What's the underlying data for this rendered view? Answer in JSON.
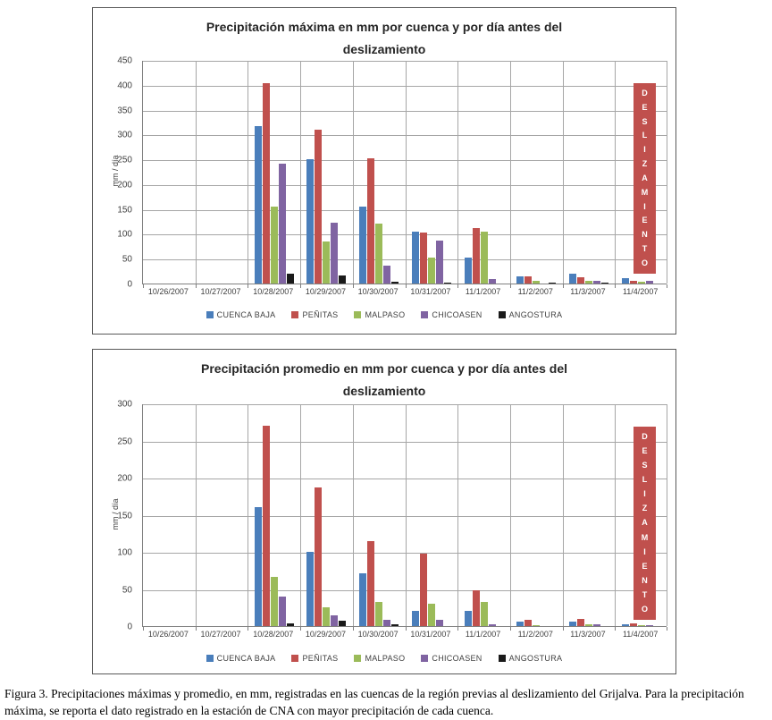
{
  "figure": {
    "caption": "Figura 3. Precipitaciones máximas y promedio, en mm, registradas en las cuencas de la región previas al deslizamiento del Grijalva. Para la precipitación máxima, se reporta el dato registrado en la estación de CNA con mayor precipitación de cada cuenca."
  },
  "colors": {
    "cuenca_baja": "#4A7EBB",
    "penitas": "#C0504D",
    "malpaso": "#9BBB59",
    "chicoasen": "#8064A2",
    "angostura": "#1A1A1A",
    "gridline": "#A6A6A6",
    "annotation_box": "#C0504D"
  },
  "chart_data": [
    {
      "type": "bar",
      "title": "Precipitación máxima en mm por cuenca  y por día antes del",
      "title_line2": "deslizamiento",
      "ylabel": "mm / día",
      "xlabel": "",
      "ylim": [
        0,
        450
      ],
      "ytick_step": 50,
      "grid": true,
      "legend_position": "bottom",
      "categories": [
        "10/26/2007",
        "10/27/2007",
        "10/28/2007",
        "10/29/2007",
        "10/30/2007",
        "10/31/2007",
        "11/1/2007",
        "11/2/2007",
        "11/3/2007",
        "11/4/2007"
      ],
      "series": [
        {
          "name": "CUENCA BAJA",
          "color": "#4A7EBB",
          "values": [
            0,
            0,
            317,
            250,
            155,
            105,
            52,
            15,
            20,
            10
          ]
        },
        {
          "name": "PEÑITAS",
          "color": "#C0504D",
          "values": [
            0,
            0,
            403,
            309,
            252,
            102,
            112,
            14,
            12,
            6
          ]
        },
        {
          "name": "MALPASO",
          "color": "#9BBB59",
          "values": [
            0,
            0,
            155,
            85,
            120,
            52,
            105,
            5,
            5,
            3
          ]
        },
        {
          "name": "CHICOASEN",
          "color": "#8064A2",
          "values": [
            0,
            0,
            241,
            122,
            36,
            86,
            9,
            0,
            5,
            5
          ]
        },
        {
          "name": "ANGOSTURA",
          "color": "#1A1A1A",
          "values": [
            0,
            0,
            20,
            16,
            3,
            2,
            0,
            2,
            1,
            0
          ]
        }
      ],
      "annotation": {
        "label": "DESLIZAMIENTO",
        "x_category": "11/4/2007",
        "y_from": 22,
        "y_to": 405
      }
    },
    {
      "type": "bar",
      "title": "Precipitación promedio  en mm por  cuenca y por día antes del",
      "title_line2": "deslizamiento",
      "ylabel": "mm / día",
      "xlabel": "",
      "ylim": [
        0,
        300
      ],
      "ytick_step": 50,
      "grid": true,
      "legend_position": "bottom",
      "categories": [
        "10/26/2007",
        "10/27/2007",
        "10/28/2007",
        "10/29/2007",
        "10/30/2007",
        "10/31/2007",
        "11/1/2007",
        "11/2/2007",
        "11/3/2007",
        "11/4/2007"
      ],
      "series": [
        {
          "name": "CUENCA BAJA",
          "color": "#4A7EBB",
          "values": [
            0,
            0,
            160,
            100,
            71,
            21,
            20,
            6,
            6,
            2
          ]
        },
        {
          "name": "PEÑITAS",
          "color": "#C0504D",
          "values": [
            0,
            0,
            270,
            187,
            115,
            97,
            48,
            9,
            10,
            4
          ]
        },
        {
          "name": "MALPASO",
          "color": "#9BBB59",
          "values": [
            0,
            0,
            66,
            25,
            33,
            30,
            33,
            1,
            3,
            1
          ]
        },
        {
          "name": "CHICOASEN",
          "color": "#8064A2",
          "values": [
            0,
            0,
            40,
            15,
            8,
            8,
            2,
            0,
            2,
            1
          ]
        },
        {
          "name": "ANGOSTURA",
          "color": "#1A1A1A",
          "values": [
            0,
            0,
            4,
            7,
            2,
            0,
            0,
            0,
            0,
            0
          ]
        }
      ],
      "annotation": {
        "label": "DESLIZAMIENTO",
        "x_category": "11/4/2007",
        "y_from": 10,
        "y_to": 270
      }
    }
  ]
}
